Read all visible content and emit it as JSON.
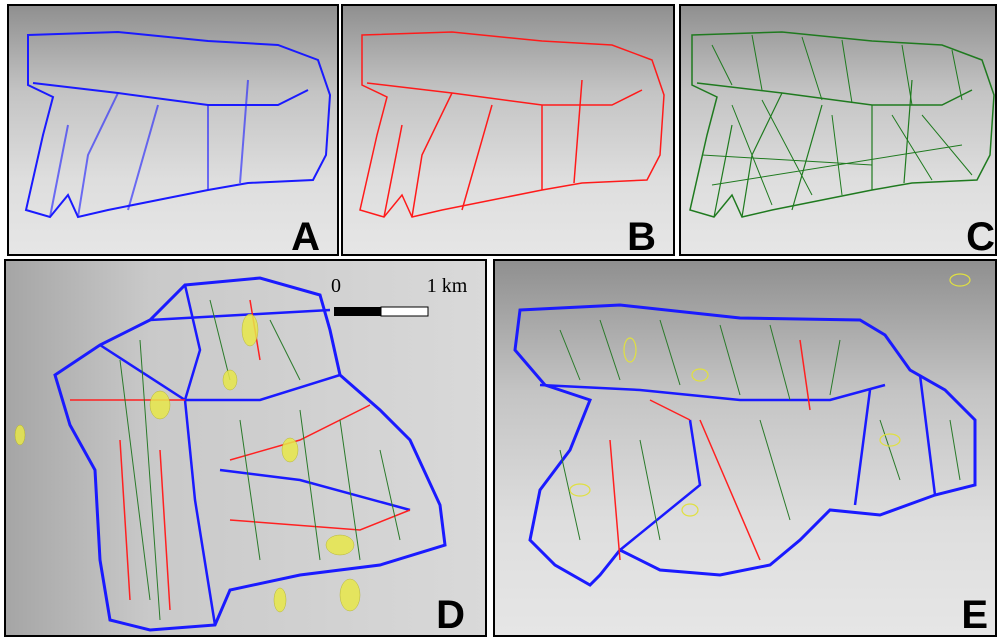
{
  "panels": [
    {
      "label": "A"
    },
    {
      "label": "B"
    },
    {
      "label": "C"
    },
    {
      "label": "D"
    },
    {
      "label": "E"
    }
  ],
  "scale_bar": {
    "start": "0",
    "end": "1 km"
  }
}
